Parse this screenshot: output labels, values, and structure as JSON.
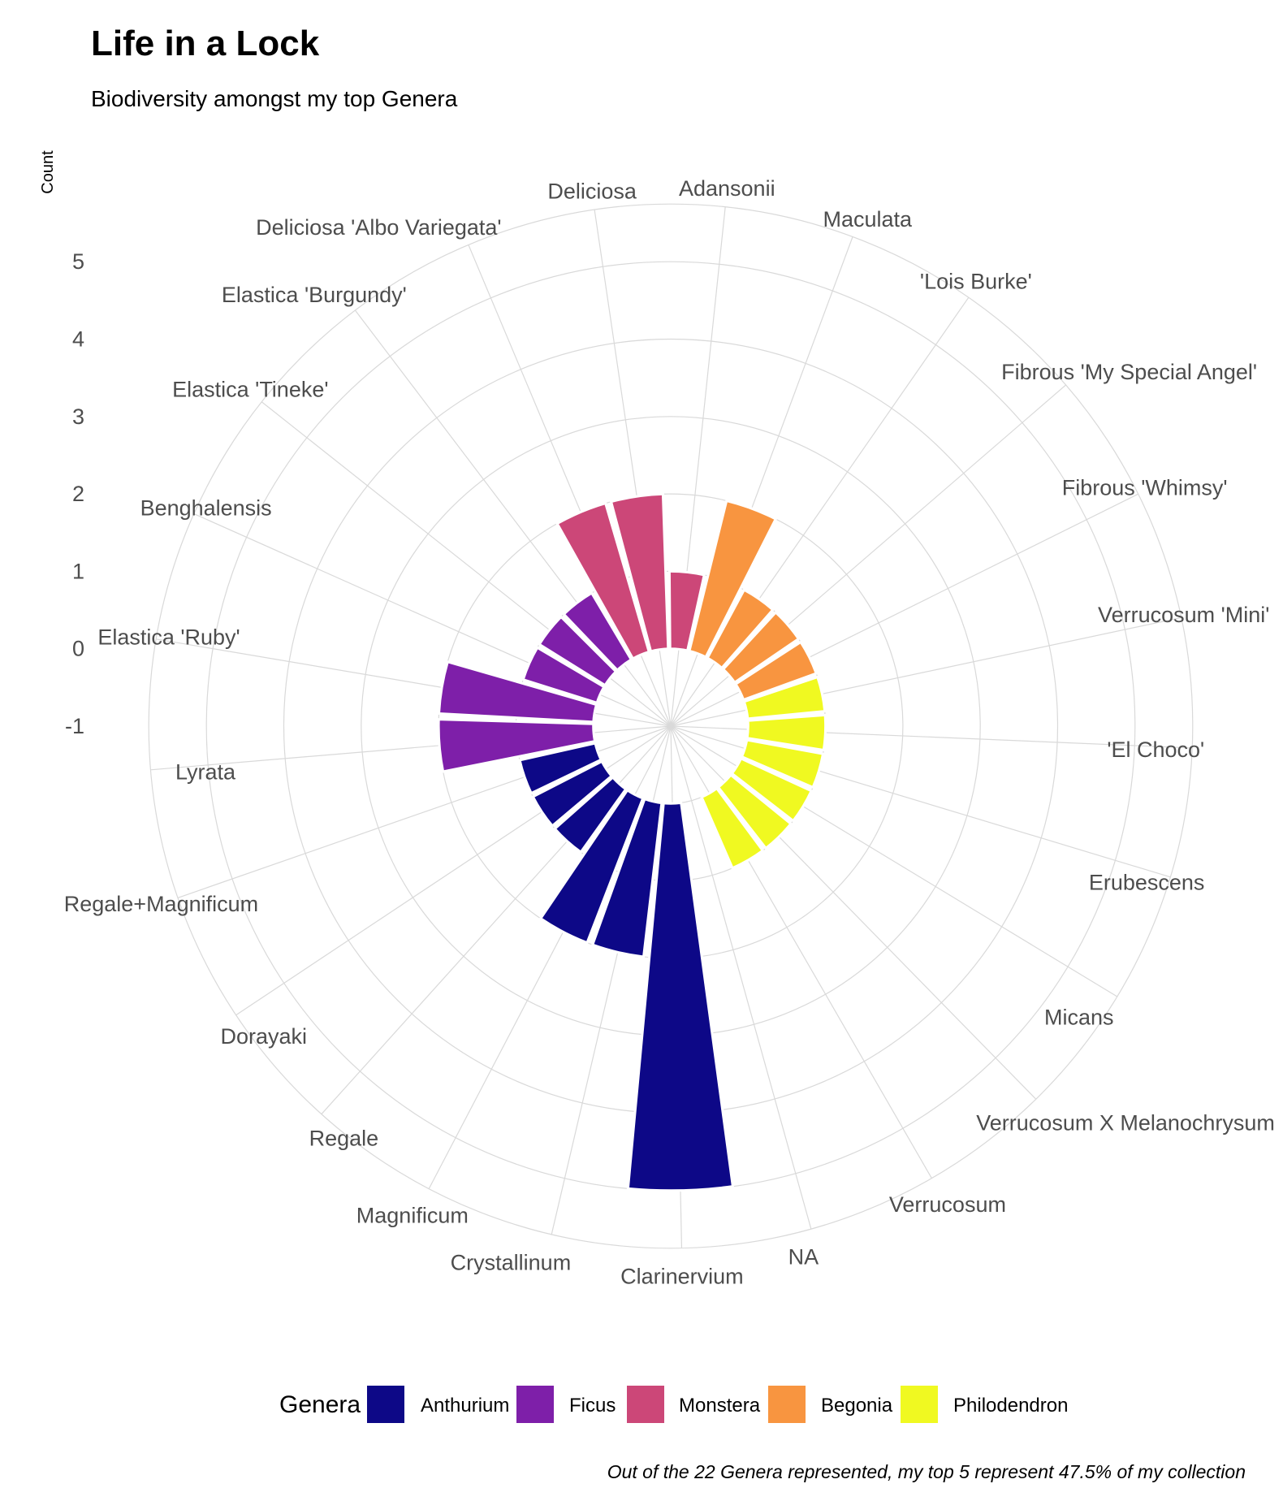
{
  "chart_data": {
    "type": "bar",
    "coord": "polar",
    "title": "Life in a Lock",
    "subtitle": "Biodiversity amongst my top Genera",
    "ylabel": "Count",
    "caption": "Out of the 22 Genera represented, my top 5 represent 47.5% of my collection",
    "ylim": [
      -1,
      5
    ],
    "yticks": [
      "5",
      "4",
      "3",
      "2",
      "1",
      "0",
      "-1"
    ],
    "ytick_values": [
      5,
      4,
      3,
      2,
      1,
      0,
      -1
    ],
    "categories": [
      {
        "label": "Adansonii",
        "value": 1,
        "genus": "Monstera"
      },
      {
        "label": "Maculata",
        "value": 2,
        "genus": "Begonia"
      },
      {
        "label": "'Lois Burke'",
        "value": 1,
        "genus": "Begonia"
      },
      {
        "label": "Fibrous 'My Special Angel'",
        "value": 1,
        "genus": "Begonia"
      },
      {
        "label": "Fibrous 'Whimsy'",
        "value": 1,
        "genus": "Begonia"
      },
      {
        "label": "Verrucosum 'Mini'",
        "value": 1,
        "genus": "Philodendron"
      },
      {
        "label": "'El Choco'",
        "value": 1,
        "genus": "Philodendron"
      },
      {
        "label": "Erubescens",
        "value": 1,
        "genus": "Philodendron"
      },
      {
        "label": "Micans",
        "value": 1,
        "genus": "Philodendron"
      },
      {
        "label": "Verrucosum X Melanochrysum",
        "value": 1,
        "genus": "Philodendron"
      },
      {
        "label": "Verrucosum",
        "value": 1,
        "genus": "Philodendron"
      },
      {
        "label": "NA",
        "value": 0,
        "genus": "Philodendron"
      },
      {
        "label": "Clarinervium",
        "value": 5,
        "genus": "Anthurium"
      },
      {
        "label": "Crystallinum",
        "value": 2,
        "genus": "Anthurium"
      },
      {
        "label": "Magnificum",
        "value": 2,
        "genus": "Anthurium"
      },
      {
        "label": "Regale",
        "value": 1,
        "genus": "Anthurium"
      },
      {
        "label": "Dorayaki",
        "value": 1,
        "genus": "Anthurium"
      },
      {
        "label": "Regale+Magnificum",
        "value": 1,
        "genus": "Anthurium"
      },
      {
        "label": "Lyrata",
        "value": 2,
        "genus": "Ficus"
      },
      {
        "label": "Elastica 'Ruby'",
        "value": 2,
        "genus": "Ficus"
      },
      {
        "label": "Benghalensis",
        "value": 1,
        "genus": "Ficus"
      },
      {
        "label": "Elastica 'Tineke'",
        "value": 1,
        "genus": "Ficus"
      },
      {
        "label": "Elastica 'Burgundy'",
        "value": 1,
        "genus": "Ficus"
      },
      {
        "label": "Deliciosa 'Albo Variegata'",
        "value": 2,
        "genus": "Monstera"
      },
      {
        "label": "Deliciosa",
        "value": 2,
        "genus": "Monstera"
      }
    ],
    "legend": {
      "title": "Genera",
      "placement": "bottom",
      "items": [
        {
          "name": "Anthurium",
          "color": "#0d0887"
        },
        {
          "name": "Ficus",
          "color": "#7e1fa9"
        },
        {
          "name": "Monstera",
          "color": "#cc4778"
        },
        {
          "name": "Begonia",
          "color": "#f89540"
        },
        {
          "name": "Philodendron",
          "color": "#f0f921"
        }
      ]
    },
    "grid": true,
    "colors": {
      "grid": "#d9d9d9",
      "background": "#ffffff"
    }
  }
}
